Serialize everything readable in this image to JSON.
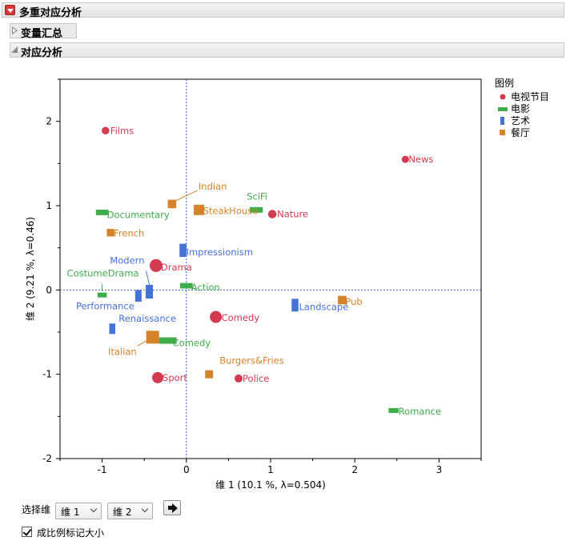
{
  "report": {
    "title": "多重对应分析",
    "section_summary": "变量汇总",
    "section_ca": "对应分析"
  },
  "controls": {
    "dimension_label": "选择维",
    "dim_x": "维 1",
    "dim_y": "维 2",
    "scale_checkbox_label": "成比例标记大小",
    "scale_checked": true
  },
  "colors": {
    "tv": "#d43a52",
    "movie": "#3fac4b",
    "art": "#4472d8",
    "restaurant": "#d4832a"
  },
  "chart_data": {
    "type": "scatter",
    "xlabel": "维 1  (10.1 %, λ=0.504)",
    "ylabel": "维 2  (9.21 %, λ=0.46)",
    "xlim": [
      -1.5,
      3.5
    ],
    "ylim": [
      -2,
      2.5
    ],
    "xticks": [
      -1,
      0,
      1,
      2,
      3
    ],
    "yticks": [
      -2,
      -1,
      0,
      1,
      2
    ],
    "reference_lines": {
      "x": 0,
      "y": 0
    },
    "legend": {
      "title": "图例",
      "position": "right",
      "entries": [
        {
          "key": "tv",
          "label": "电视节目",
          "marker": "circle"
        },
        {
          "key": "movie",
          "label": "电影",
          "marker": "hbar"
        },
        {
          "key": "art",
          "label": "艺术",
          "marker": "vbar"
        },
        {
          "key": "restaurant",
          "label": "餐厅",
          "marker": "square"
        }
      ]
    },
    "series": [
      {
        "key": "tv",
        "points": [
          {
            "label": "Films",
            "x": -0.96,
            "y": 1.89,
            "size": 0.35
          },
          {
            "label": "News",
            "x": 2.6,
            "y": 1.55,
            "size": 0.3
          },
          {
            "label": "Nature",
            "x": 1.02,
            "y": 0.9,
            "size": 0.45
          },
          {
            "label": "Drama",
            "x": -0.36,
            "y": 0.29,
            "size": 1.0
          },
          {
            "label": "Comedy",
            "x": 0.35,
            "y": -0.32,
            "size": 0.9
          },
          {
            "label": "Sport",
            "x": -0.34,
            "y": -1.04,
            "size": 0.8
          },
          {
            "label": "Police",
            "x": 0.62,
            "y": -1.05,
            "size": 0.4
          }
        ]
      },
      {
        "key": "movie",
        "points": [
          {
            "label": "SciFi",
            "x": 0.83,
            "y": 0.95,
            "size": 0.65
          },
          {
            "label": "Documentary",
            "x": -1.0,
            "y": 0.92,
            "size": 0.6
          },
          {
            "label": "Action",
            "x": 0.0,
            "y": 0.05,
            "size": 0.6
          },
          {
            "label": "CostumeDrama",
            "x": -1.0,
            "y": -0.06,
            "size": 0.35
          },
          {
            "label": "Comedy",
            "x": -0.22,
            "y": -0.6,
            "size": 1.0
          },
          {
            "label": "Romance",
            "x": 2.46,
            "y": -1.43,
            "size": 0.4
          }
        ]
      },
      {
        "key": "art",
        "points": [
          {
            "label": "Impressionism",
            "x": -0.04,
            "y": 0.47,
            "size": 0.75
          },
          {
            "label": "Modern",
            "x": -0.44,
            "y": -0.02,
            "size": 0.8
          },
          {
            "label": "Performance",
            "x": -0.57,
            "y": -0.07,
            "size": 0.6
          },
          {
            "label": "Landscape",
            "x": 1.29,
            "y": -0.18,
            "size": 0.7
          },
          {
            "label": "Renaissance",
            "x": -0.88,
            "y": -0.46,
            "size": 0.5
          }
        ]
      },
      {
        "key": "restaurant",
        "points": [
          {
            "label": "Indian",
            "x": -0.17,
            "y": 1.02,
            "size": 0.55
          },
          {
            "label": "SteakHouse",
            "x": 0.15,
            "y": 0.95,
            "size": 0.75
          },
          {
            "label": "French",
            "x": -0.9,
            "y": 0.68,
            "size": 0.45
          },
          {
            "label": "Pub",
            "x": 1.85,
            "y": -0.12,
            "size": 0.55
          },
          {
            "label": "Italian",
            "x": -0.4,
            "y": -0.56,
            "size": 1.0
          },
          {
            "label": "Burgers&Fries",
            "x": 0.27,
            "y": -1.0,
            "size": 0.5
          }
        ]
      }
    ]
  }
}
